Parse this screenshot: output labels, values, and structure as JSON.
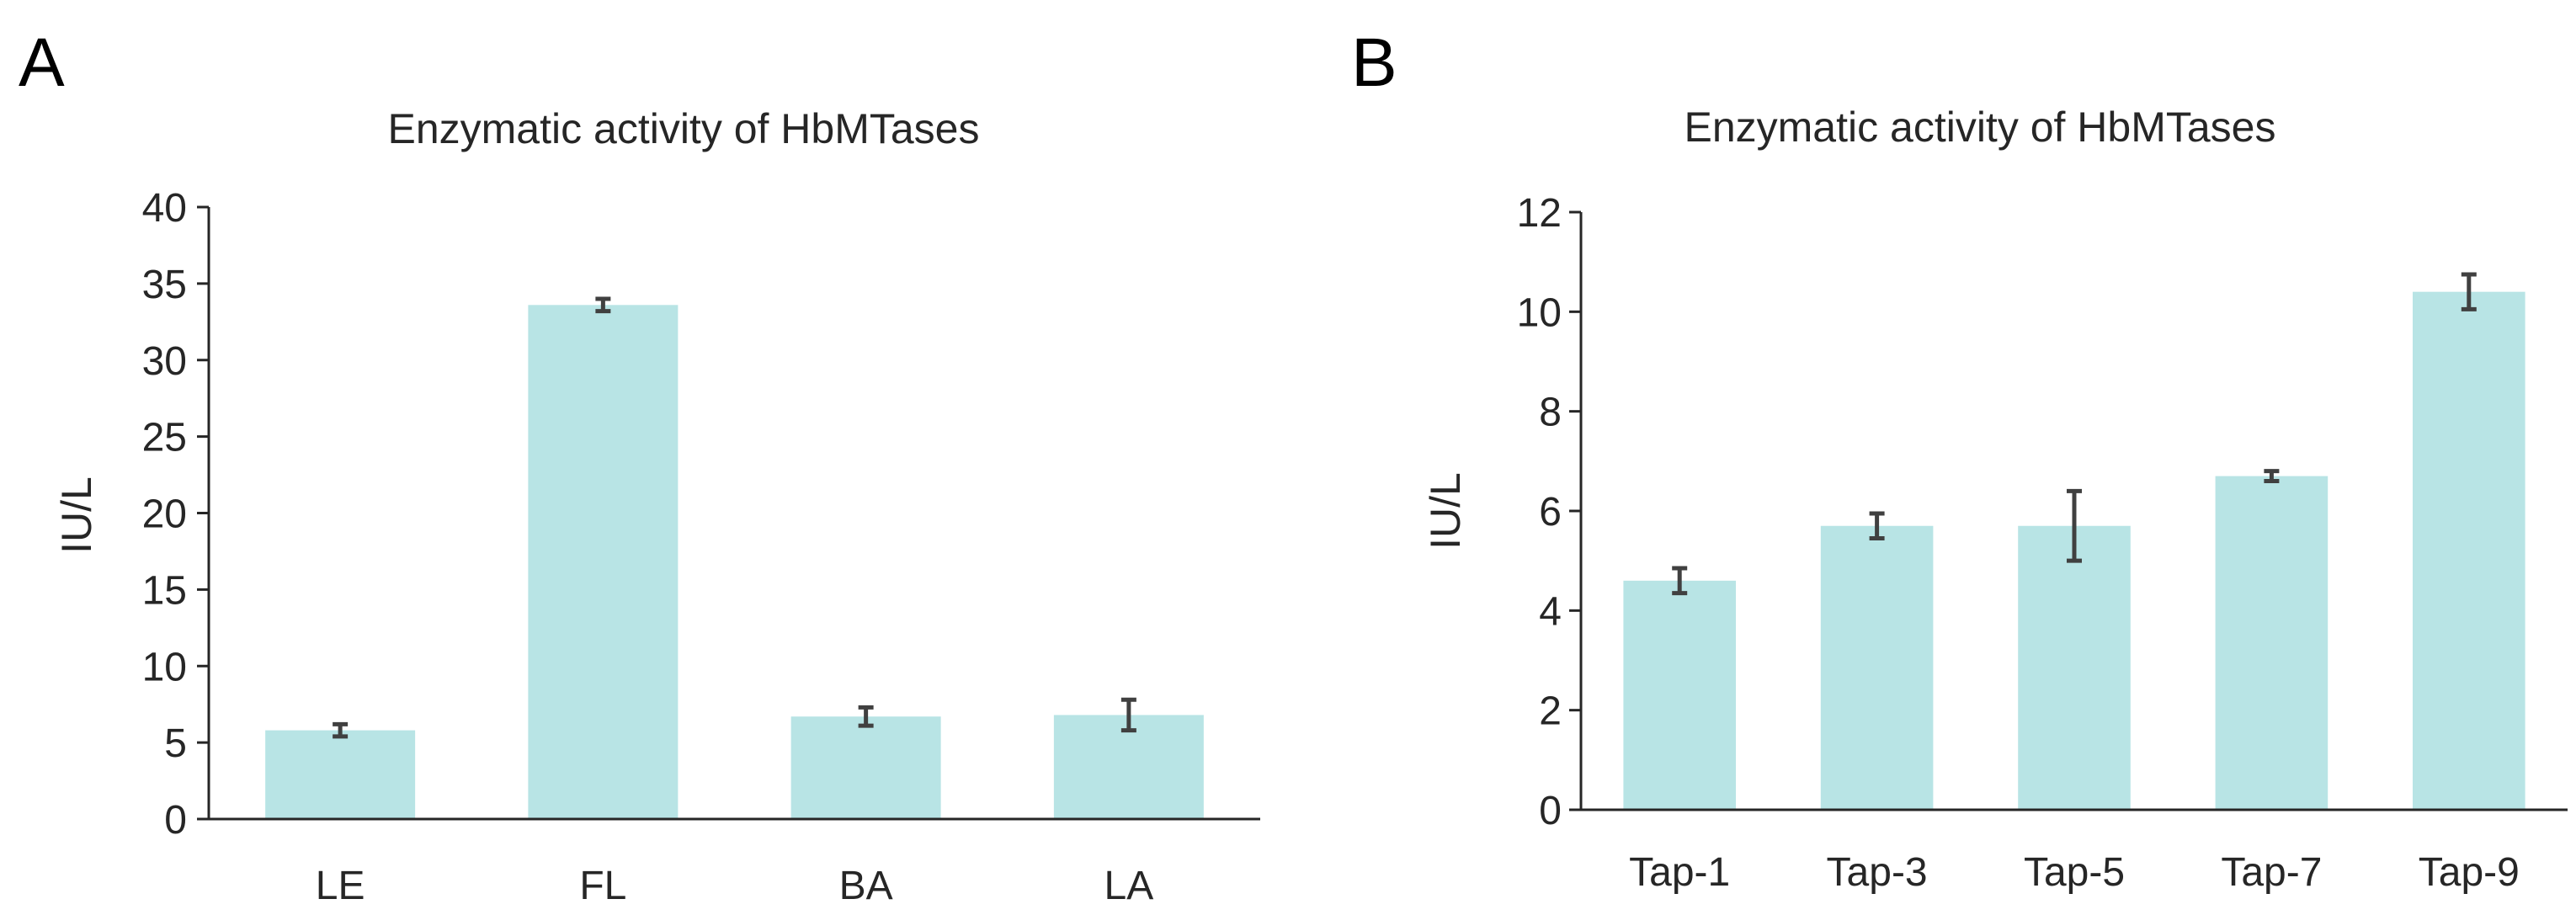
{
  "chart_data": [
    {
      "type": "bar",
      "panel_label": "A",
      "title": "Enzymatic activity of HbMTases",
      "xlabel": "",
      "ylabel": "IU/L",
      "ylim": [
        0,
        40
      ],
      "yticks": [
        0,
        5,
        10,
        15,
        20,
        25,
        30,
        35,
        40
      ],
      "categories": [
        "LE",
        "FL",
        "BA",
        "LA"
      ],
      "values": [
        5.8,
        33.6,
        6.7,
        6.8
      ],
      "errors": [
        0.4,
        0.4,
        0.6,
        1.0
      ],
      "bar_color": "#b8e4e5",
      "error_color": "#404040"
    },
    {
      "type": "bar",
      "panel_label": "B",
      "title": "Enzymatic activity of HbMTases",
      "xlabel": "",
      "ylabel": "IU/L",
      "ylim": [
        0,
        12
      ],
      "yticks": [
        0,
        2,
        4,
        6,
        8,
        10,
        12
      ],
      "categories": [
        "Tap-1",
        "Tap-3",
        "Tap-5",
        "Tap-7",
        "Tap-9"
      ],
      "values": [
        4.6,
        5.7,
        5.7,
        6.7,
        10.4
      ],
      "errors": [
        0.25,
        0.25,
        0.7,
        0.1,
        0.35
      ],
      "bar_color": "#b8e4e5",
      "error_color": "#404040"
    }
  ]
}
